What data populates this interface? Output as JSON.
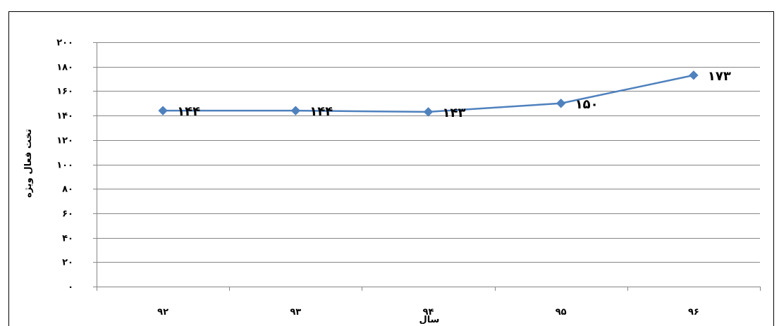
{
  "chart_data": {
    "type": "line",
    "title": "",
    "xlabel": "سال",
    "ylabel": "تخت فعال ویژه",
    "categories": [
      "۹۲",
      "۹۳",
      "۹۴",
      "۹۵",
      "۹۶"
    ],
    "series": [
      {
        "values": [
          144,
          144,
          143,
          150,
          173
        ],
        "labels": [
          "۱۴۴",
          "۱۴۴",
          "۱۴۳",
          "۱۵۰",
          "۱۷۳"
        ],
        "color": "#4f81bd"
      }
    ],
    "ylim": [
      0,
      200
    ],
    "ytick_values": [
      0,
      20,
      40,
      60,
      80,
      100,
      120,
      140,
      160,
      180,
      200
    ],
    "ytick_labels": [
      "۰",
      "۲۰",
      "۴۰",
      "۶۰",
      "۸۰",
      "۱۰۰",
      "۱۲۰",
      "۱۴۰",
      "۱۶۰",
      "۱۸۰",
      "۲۰۰"
    ],
    "grid": true,
    "legend": false
  },
  "colors": {
    "series": "#4f81bd",
    "grid": "#868686",
    "border": "#000000"
  }
}
